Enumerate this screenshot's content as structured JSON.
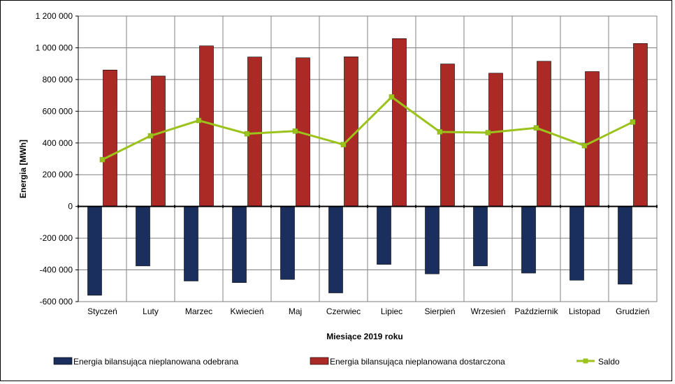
{
  "chart_data": {
    "type": "bar",
    "title": "",
    "xlabel": "Miesiące 2019 roku",
    "ylabel": "Energia  [MWh]",
    "ylim": [
      -600000,
      1200000
    ],
    "yticks": [
      1200000,
      1000000,
      800000,
      600000,
      400000,
      200000,
      0,
      -200000,
      -400000,
      -600000
    ],
    "ytick_labels": [
      "1 200 000",
      "1 000 000",
      "800 000",
      "600 000",
      "400 000",
      "200 000",
      "0",
      "-200 000",
      "-400 000",
      "-600 000"
    ],
    "categories": [
      "Styczeń",
      "Luty",
      "Marzec",
      "Kwiecień",
      "Maj",
      "Czerwiec",
      "Lipiec",
      "Sierpień",
      "Wrzesień",
      "Październik",
      "Listopad",
      "Grudzień"
    ],
    "grid": true,
    "legend_position": "bottom",
    "series": [
      {
        "name": "Energia bilansująca nieplanowana odebrana",
        "type": "bar",
        "color": "#1b2f5e",
        "values": [
          -560000,
          -375000,
          -470000,
          -480000,
          -460000,
          -545000,
          -365000,
          -425000,
          -375000,
          -420000,
          -465000,
          -490000
        ]
      },
      {
        "name": "Energia bilansująca nieplanowana dostarczona",
        "type": "bar",
        "color": "#ac2a26",
        "values": [
          860000,
          822000,
          1012000,
          942000,
          937000,
          943000,
          1058000,
          898000,
          840000,
          915000,
          850000,
          1027000
        ]
      },
      {
        "name": "Saldo",
        "type": "line",
        "color": "#9bc31c",
        "values": [
          295000,
          445000,
          542000,
          458000,
          475000,
          390000,
          690000,
          470000,
          465000,
          495000,
          383000,
          532000
        ]
      }
    ]
  }
}
